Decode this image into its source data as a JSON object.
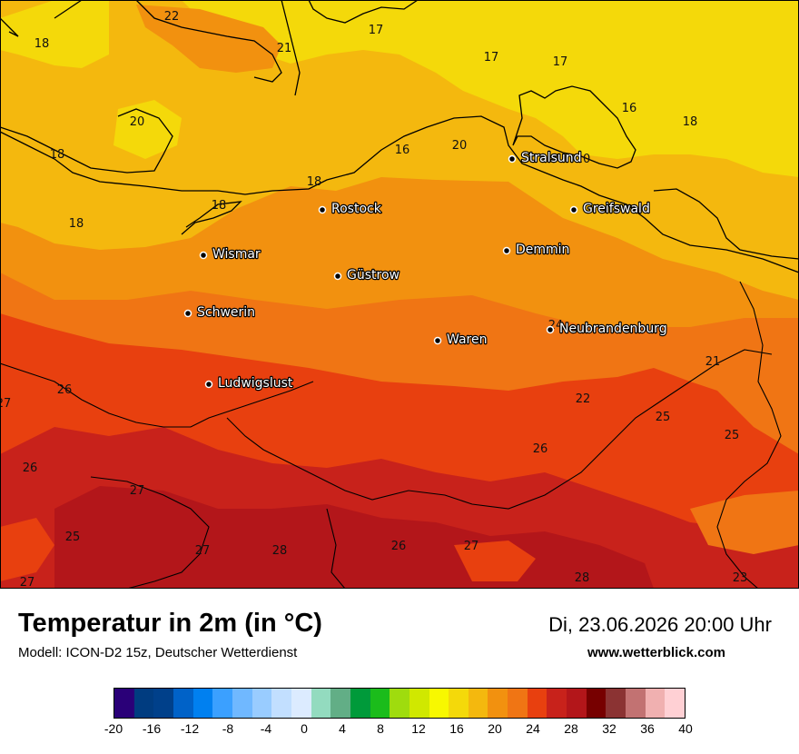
{
  "title": "Temperatur in 2m (in °C)",
  "model": "Modell: ICON-D2 15z, Deutscher Wetterdienst",
  "datetime": "Di, 23.06.2026 20:00 Uhr",
  "website": "www.wetterblick.com",
  "colors": {
    "t16": "#f4d90a",
    "t18": "#f4b80e",
    "t20": "#f2910f",
    "t22": "#f07514",
    "t24": "#e8400f",
    "t26": "#c8221b",
    "t28": "#b3161a",
    "coast": "#000000"
  },
  "legend": {
    "colors": [
      "#2a0078",
      "#003c80",
      "#00408a",
      "#0062c8",
      "#0080f0",
      "#3ba0ff",
      "#70b8ff",
      "#99ccff",
      "#c2dfff",
      "#dcebff",
      "#93dbbf",
      "#62ae86",
      "#009a3a",
      "#1bbc1b",
      "#9fdc0e",
      "#d0e800",
      "#f8f800",
      "#f4d90a",
      "#f4b80e",
      "#f2910f",
      "#f07514",
      "#e8400f",
      "#c8221b",
      "#b3161a",
      "#770000",
      "#8b3333",
      "#c27272",
      "#f0b0b0",
      "#ffd0d4"
    ],
    "ticks": [
      "-20",
      "-16",
      "-12",
      "-8",
      "-4",
      "0",
      "4",
      "8",
      "12",
      "16",
      "20",
      "24",
      "28",
      "32",
      "36",
      "40"
    ]
  },
  "cities": [
    {
      "name": "Stralsund"
    },
    {
      "name": "Greifswald"
    },
    {
      "name": "Rostock"
    },
    {
      "name": "Demmin"
    },
    {
      "name": "Wismar"
    },
    {
      "name": "Güstrow"
    },
    {
      "name": "Schwerin"
    },
    {
      "name": "Neubrandenburg"
    },
    {
      "name": "Waren"
    },
    {
      "name": "Ludwigslust"
    }
  ],
  "contour_labels": [
    "22",
    "18",
    "21",
    "17",
    "17",
    "17",
    "16",
    "18",
    "20",
    "18",
    "20",
    "16",
    "18",
    "20",
    "18",
    "18",
    "24",
    "21",
    "27",
    "26",
    "22",
    "25",
    "25",
    "26",
    "26",
    "27",
    "25",
    "27",
    "28",
    "26",
    "27",
    "28",
    "27",
    "23"
  ]
}
